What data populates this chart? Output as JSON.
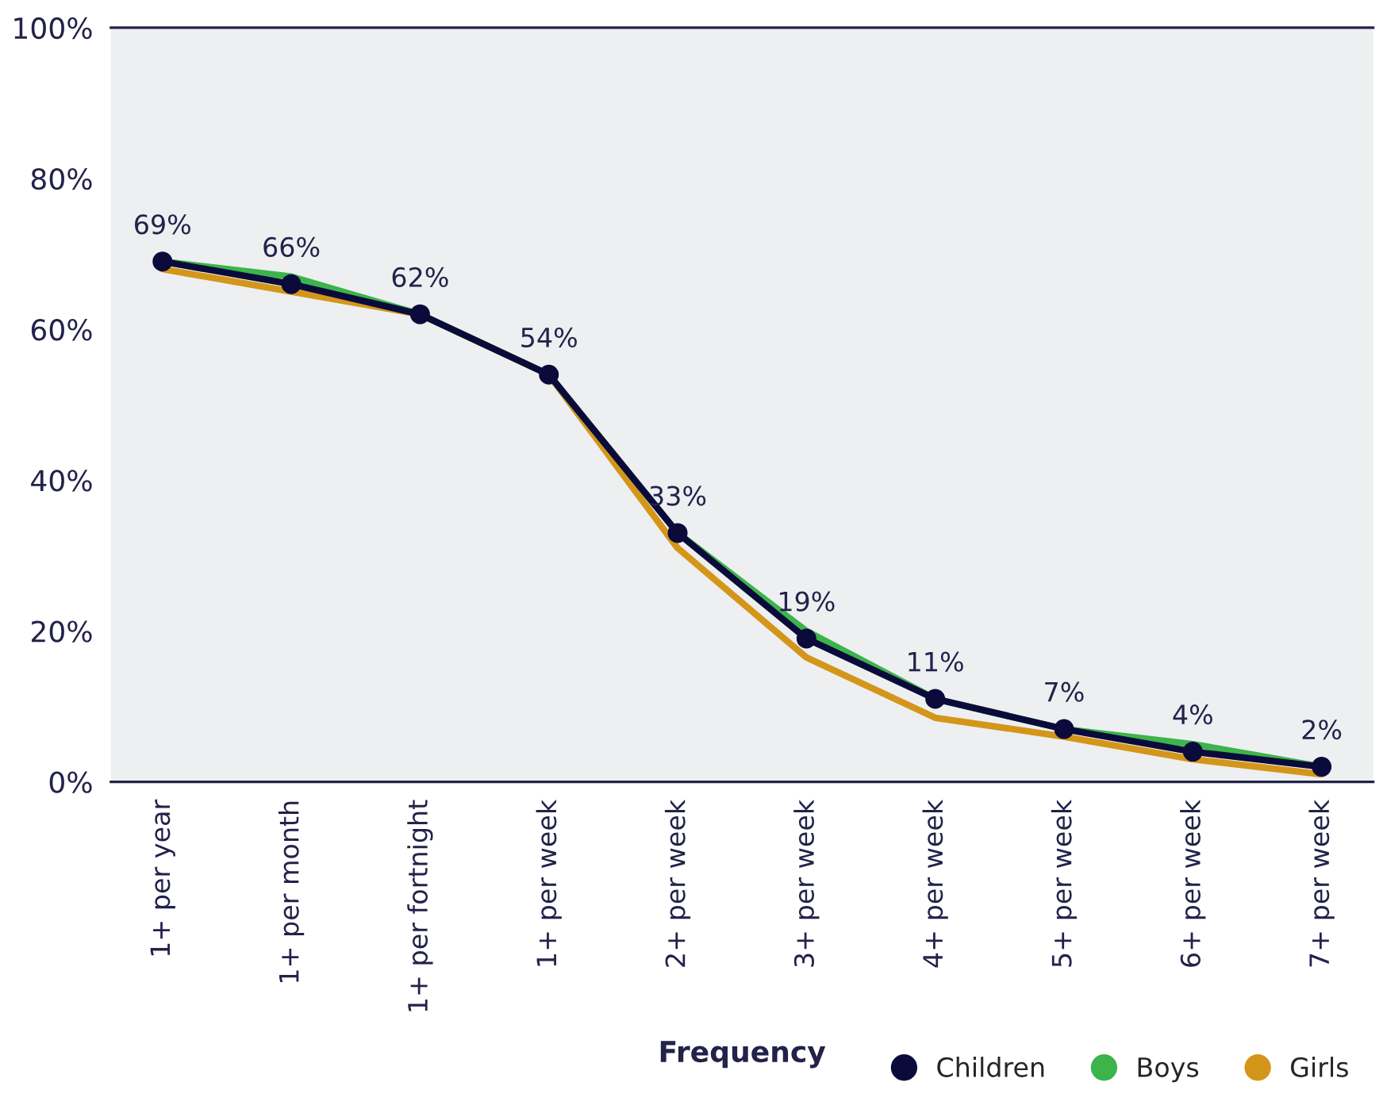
{
  "chart_data": {
    "type": "line",
    "xlabel": "Frequency",
    "categories": [
      "1+ per year",
      "1+ per month",
      "1+ per fortnight",
      "1+ per week",
      "2+ per week",
      "3+ per week",
      "4+ per week",
      "5+ per week",
      "6+ per week",
      "7+ per week"
    ],
    "series": [
      {
        "name": "Children",
        "color": "#0b0b3b",
        "marker": "circle",
        "values": [
          69,
          66,
          62,
          54,
          33,
          19,
          11,
          7,
          4,
          2
        ],
        "value_labels": [
          "69%",
          "66%",
          "62%",
          "54%",
          "33%",
          "19%",
          "11%",
          "7%",
          "4%",
          "2%"
        ]
      },
      {
        "name": "Boys",
        "color": "#3cb44b",
        "marker": "none",
        "values": [
          69,
          67,
          62,
          54,
          33,
          20,
          11,
          7,
          5,
          2
        ]
      },
      {
        "name": "Girls",
        "color": "#d4961a",
        "marker": "none",
        "values": [
          68,
          65,
          62,
          54,
          31,
          16.5,
          8.5,
          6,
          3,
          1
        ]
      }
    ],
    "ylim": [
      0,
      100
    ],
    "yticks": [
      {
        "value": 0,
        "label": "0%"
      },
      {
        "value": 20,
        "label": "20%"
      },
      {
        "value": 40,
        "label": "40%"
      },
      {
        "value": 60,
        "label": "60%"
      },
      {
        "value": 80,
        "label": "80%"
      },
      {
        "value": 100,
        "label": "100%"
      }
    ],
    "grid": false,
    "legend": "bottom right",
    "line_style": "solid"
  }
}
